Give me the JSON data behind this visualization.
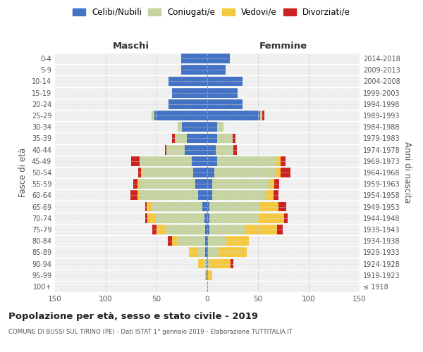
{
  "age_groups": [
    "100+",
    "95-99",
    "90-94",
    "85-89",
    "80-84",
    "75-79",
    "70-74",
    "65-69",
    "60-64",
    "55-59",
    "50-54",
    "45-49",
    "40-44",
    "35-39",
    "30-34",
    "25-29",
    "20-24",
    "15-19",
    "10-14",
    "5-9",
    "0-4"
  ],
  "birth_years": [
    "≤ 1918",
    "1919-1923",
    "1924-1928",
    "1929-1933",
    "1934-1938",
    "1939-1943",
    "1944-1948",
    "1949-1953",
    "1954-1958",
    "1959-1963",
    "1964-1968",
    "1969-1973",
    "1974-1978",
    "1979-1983",
    "1984-1988",
    "1989-1993",
    "1994-1998",
    "1999-2003",
    "2004-2008",
    "2009-2013",
    "2014-2018"
  ],
  "colors": {
    "celibi": "#4472C4",
    "coniugati": "#c5d4a0",
    "vedovi": "#f5c842",
    "divorziati": "#cc2222"
  },
  "maschi": {
    "celibi": [
      0,
      1,
      1,
      2,
      2,
      2,
      3,
      5,
      9,
      12,
      14,
      15,
      22,
      20,
      25,
      52,
      38,
      35,
      38,
      26,
      26
    ],
    "coniugati": [
      0,
      0,
      2,
      8,
      28,
      40,
      48,
      50,
      58,
      55,
      50,
      52,
      18,
      12,
      4,
      3,
      0,
      0,
      0,
      0,
      0
    ],
    "vedovi": [
      0,
      1,
      6,
      8,
      5,
      8,
      8,
      5,
      2,
      2,
      1,
      0,
      0,
      0,
      0,
      0,
      0,
      0,
      0,
      0,
      0
    ],
    "divorziati": [
      0,
      0,
      0,
      0,
      4,
      4,
      2,
      1,
      7,
      4,
      3,
      8,
      2,
      3,
      0,
      0,
      0,
      0,
      0,
      0,
      0
    ]
  },
  "femmine": {
    "celibi": [
      0,
      0,
      0,
      1,
      1,
      2,
      2,
      2,
      5,
      5,
      7,
      10,
      8,
      10,
      10,
      52,
      35,
      30,
      35,
      18,
      22
    ],
    "coniugati": [
      0,
      0,
      3,
      10,
      18,
      35,
      48,
      50,
      52,
      56,
      60,
      58,
      18,
      15,
      6,
      2,
      0,
      0,
      0,
      0,
      0
    ],
    "vedovi": [
      1,
      5,
      20,
      28,
      22,
      32,
      26,
      18,
      8,
      5,
      5,
      4,
      0,
      0,
      0,
      0,
      0,
      0,
      0,
      0,
      0
    ],
    "divorziati": [
      0,
      0,
      3,
      0,
      0,
      5,
      3,
      8,
      5,
      5,
      10,
      5,
      3,
      3,
      0,
      2,
      0,
      0,
      0,
      0,
      0
    ]
  },
  "title": "Popolazione per età, sesso e stato civile - 2019",
  "subtitle": "COMUNE DI BUSSI SUL TIRINO (PE) - Dati ISTAT 1° gennaio 2019 - Elaborazione TUTTITALIA.IT",
  "xlabel_left": "Maschi",
  "xlabel_right": "Femmine",
  "ylabel_left": "Fasce di età",
  "ylabel_right": "Anni di nascita",
  "xlim": 150,
  "legend_labels": [
    "Celibi/Nubili",
    "Coniugati/e",
    "Vedovi/e",
    "Divorziati/e"
  ],
  "bg_color": "#f0f0f0",
  "bar_height": 0.85
}
